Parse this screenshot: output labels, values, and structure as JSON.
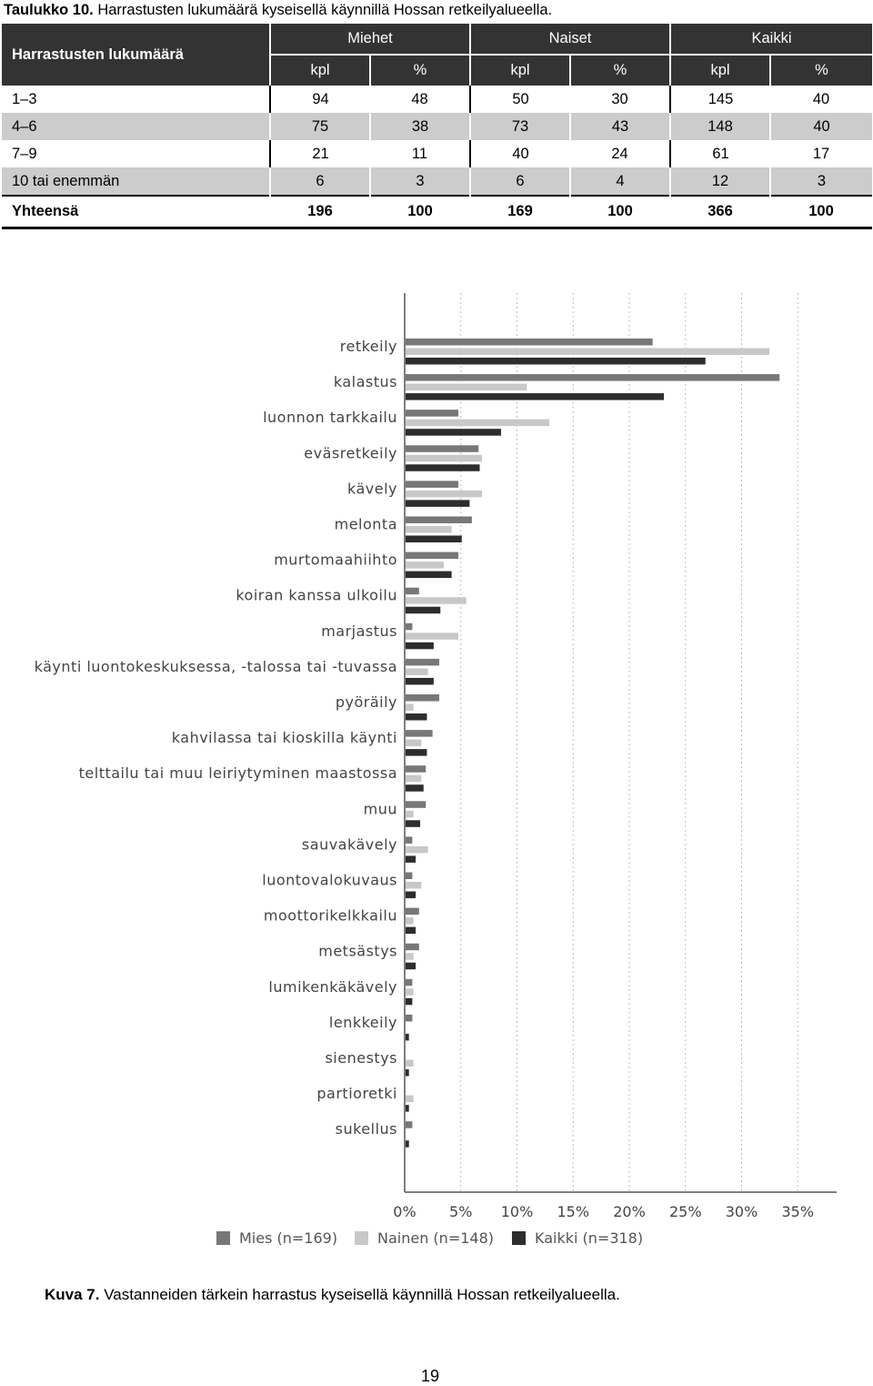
{
  "table_caption": {
    "label": "Taulukko 10.",
    "text": "Harrastusten lukumäärä kyseisellä käynnillä Hossan retkeilyalueella."
  },
  "table": {
    "row_header": "Harrastusten lukumäärä",
    "groups": [
      "Miehet",
      "Naiset",
      "Kaikki"
    ],
    "subheaders": [
      "kpl",
      "%",
      "kpl",
      "%",
      "kpl",
      "%"
    ],
    "rows": [
      {
        "label": "1–3",
        "values": [
          "94",
          "48",
          "50",
          "30",
          "145",
          "40"
        ]
      },
      {
        "label": "4–6",
        "values": [
          "75",
          "38",
          "73",
          "43",
          "148",
          "40"
        ]
      },
      {
        "label": "7–9",
        "values": [
          "21",
          "11",
          "40",
          "24",
          "61",
          "17"
        ]
      },
      {
        "label": "10 tai enemmän",
        "values": [
          "6",
          "3",
          "6",
          "4",
          "12",
          "3"
        ]
      }
    ],
    "total": {
      "label": "Yhteensä",
      "values": [
        "196",
        "100",
        "169",
        "100",
        "366",
        "100"
      ]
    }
  },
  "chart_data": {
    "type": "bar",
    "orientation": "horizontal",
    "categories": [
      "retkeily",
      "kalastus",
      "luonnon tarkkailu",
      "eväsretkeily",
      "kävely",
      "melonta",
      "murtomaahiihto",
      "koiran kanssa ulkoilu",
      "marjastus",
      "käynti luontokeskuksessa, -talossa tai -tuvassa",
      "pyöräily",
      "kahvilassa tai kioskilla käynti",
      "telttailu tai muu leiriytyminen maastossa",
      "muu",
      "sauvakävely",
      "luontovalokuvaus",
      "moottorikelkkailu",
      "metsästys",
      "lumikenkäkävely",
      "lenkkeily",
      "sienestys",
      "partioretki",
      "sukellus"
    ],
    "series": [
      {
        "name": "Mies (n=169)",
        "color": "#777777",
        "values": [
          22,
          33.3,
          4.7,
          6.5,
          4.7,
          5.9,
          4.7,
          1.2,
          0.6,
          3,
          3,
          2.4,
          1.8,
          1.8,
          0.6,
          0.6,
          1.2,
          1.2,
          0.6,
          0.6,
          0,
          0,
          0.6
        ]
      },
      {
        "name": "Nainen (n=148)",
        "color": "#c8c8c8",
        "values": [
          32.4,
          10.8,
          12.8,
          6.8,
          6.8,
          4.1,
          3.4,
          5.4,
          4.7,
          2,
          0.7,
          1.4,
          1.4,
          0.7,
          2,
          1.4,
          0.7,
          0.7,
          0.7,
          0,
          0.7,
          0.7,
          0
        ]
      },
      {
        "name": "Kaikki (n=318)",
        "color": "#2d2d2d",
        "values": [
          26.7,
          23,
          8.5,
          6.6,
          5.7,
          5,
          4.1,
          3.1,
          2.5,
          2.5,
          1.9,
          1.9,
          1.6,
          1.3,
          0.9,
          0.9,
          0.9,
          0.9,
          0.6,
          0.3,
          0.3,
          0.3,
          0.3
        ]
      }
    ],
    "xlim": [
      0,
      35
    ],
    "xticks": [
      "0%",
      "5%",
      "10%",
      "15%",
      "20%",
      "25%",
      "30%",
      "35%"
    ],
    "grid": "vertical-dotted",
    "legend_position": "bottom"
  },
  "figure_caption": {
    "label": "Kuva 7.",
    "text": "Vastanneiden tärkein harrastus kyseisellä käynnillä Hossan retkeilyalueella."
  },
  "page_number": "19"
}
